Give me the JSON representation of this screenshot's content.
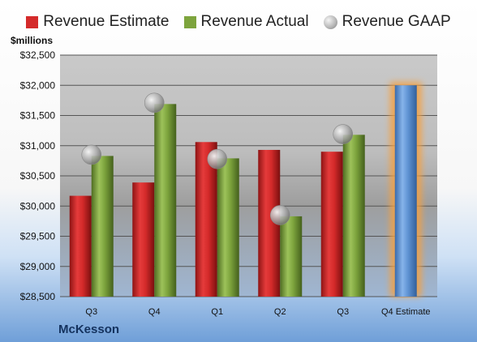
{
  "unit_label": "$millions",
  "company": "McKesson",
  "chart_data": {
    "type": "bar",
    "categories": [
      "Q3",
      "Q4",
      "Q1",
      "Q2",
      "Q3",
      "Q4 Estimate"
    ],
    "series": [
      {
        "name": "Revenue Estimate",
        "kind": "bar",
        "color": "#d42a2a",
        "values": [
          30170,
          30390,
          31060,
          30930,
          30900,
          null
        ]
      },
      {
        "name": "Revenue Actual",
        "kind": "bar",
        "color": "#7da43d",
        "values": [
          30830,
          31690,
          30790,
          29830,
          31180,
          null
        ]
      },
      {
        "name": "Revenue GAAP",
        "kind": "bubble",
        "color": "#a8a8a8",
        "values": [
          30850,
          31710,
          30780,
          29850,
          31190,
          null
        ]
      },
      {
        "name": "",
        "kind": "bar",
        "color": "#5f93d3",
        "highlight": "#f5a040",
        "values": [
          null,
          null,
          null,
          null,
          null,
          32000
        ]
      }
    ],
    "ylim": [
      28500,
      32500
    ],
    "yticks": [
      "$28,500",
      "$29,000",
      "$29,500",
      "$30,000",
      "$30,500",
      "$31,000",
      "$31,500",
      "$32,000",
      "$32,500"
    ],
    "grid": true,
    "legend": "top"
  }
}
